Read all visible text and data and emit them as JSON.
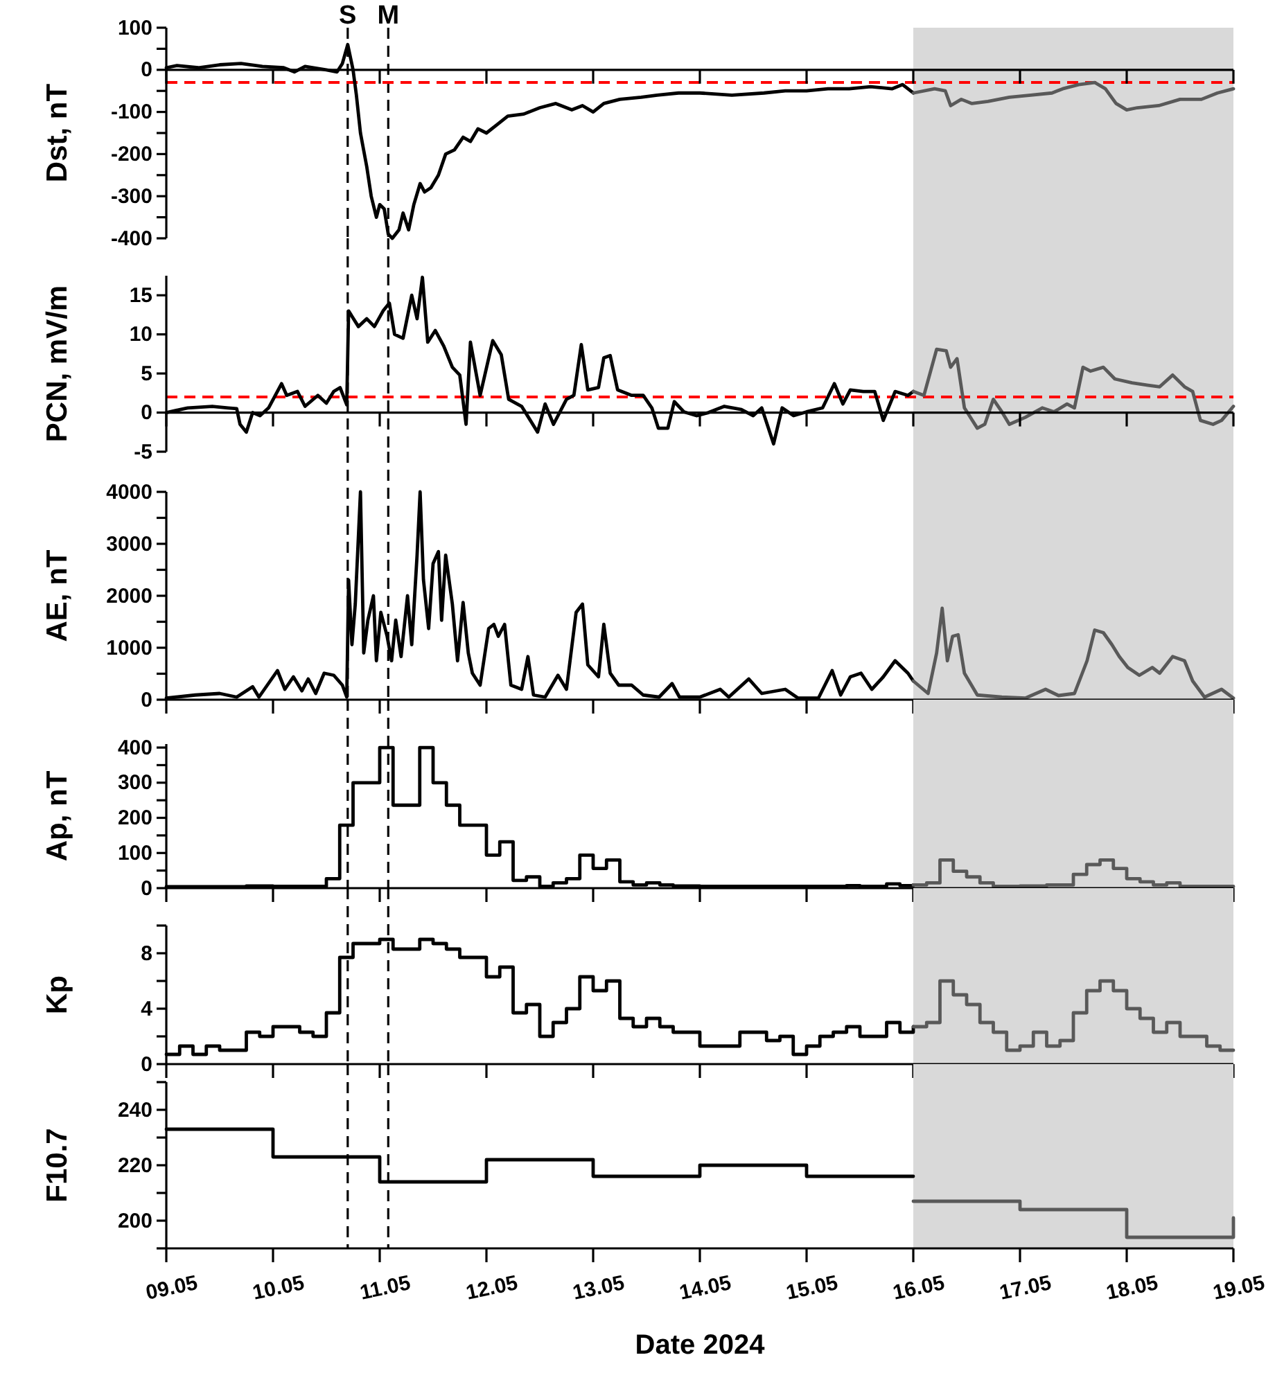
{
  "chart_data": [
    {
      "type": "line",
      "ylabel": "Dst, nT",
      "xlim": [
        "2024-05-09",
        "2024-05-19"
      ],
      "ylim": [
        -400,
        100
      ],
      "tick_labels": "y",
      "xticks": [
        {
          "value": "2024-05-09",
          "label": null
        },
        {
          "value": "2024-05-10",
          "label": null
        },
        {
          "value": "2024-05-11",
          "label": null
        },
        {
          "value": "2024-05-12",
          "label": null
        },
        {
          "value": "2024-05-13",
          "label": null
        },
        {
          "value": "2024-05-14",
          "label": null
        },
        {
          "value": "2024-05-15",
          "label": null
        },
        {
          "value": "2024-05-16",
          "label": null
        },
        {
          "value": "2024-05-17",
          "label": null
        },
        {
          "value": "2024-05-18",
          "label": null
        },
        {
          "value": "2024-05-19",
          "label": null
        }
      ],
      "yticks": [
        100,
        {
          "value": 50,
          "label": null
        },
        0,
        {
          "value": -50,
          "label": null
        },
        -100,
        {
          "value": -150,
          "label": null
        },
        -200,
        {
          "value": -250,
          "label": null
        },
        -300,
        {
          "value": -350,
          "label": null
        },
        -400
      ],
      "bands": [
        {
          "axis": "x",
          "from": "2024-05-16",
          "to": "2024-05-19",
          "color": "#d9d9d9"
        }
      ],
      "ref_lines": [
        {
          "axis": "x",
          "value": "2024-05-10T16:48",
          "label": "S",
          "color": "#000000",
          "line_style": "dashed"
        },
        {
          "axis": "x",
          "value": "2024-05-11T01:55",
          "label": "M",
          "color": "#000000",
          "line_style": "dashed"
        },
        {
          "axis": "y",
          "value": -30,
          "color": "#ff0000",
          "line_style": "dashed"
        }
      ],
      "series": [
        {
          "color": "#000000",
          "x": [
            "2024-05-09T00:00",
            "2024-05-09T02:24",
            "2024-05-09T07:12",
            "2024-05-09T12:00",
            "2024-05-09T16:48",
            "2024-05-09T21:36",
            "2024-05-10T02:24",
            "2024-05-10T04:48",
            "2024-05-10T07:12",
            "2024-05-10T12:00",
            "2024-05-10T14:24",
            "2024-05-10T15:36",
            "2024-05-10T16:48",
            "2024-05-10T18:00",
            "2024-05-10T18:45",
            "2024-05-10T19:40",
            "2024-05-10T21:05",
            "2024-05-10T22:05",
            "2024-05-10T23:15",
            "2024-05-11T00:00",
            "2024-05-11T01:00",
            "2024-05-11T01:55",
            "2024-05-11T02:50",
            "2024-05-11T04:20",
            "2024-05-11T05:15",
            "2024-05-11T06:30",
            "2024-05-11T07:40",
            "2024-05-11T09:05",
            "2024-05-11T10:05",
            "2024-05-11T11:30",
            "2024-05-11T13:12",
            "2024-05-11T14:50",
            "2024-05-11T16:48",
            "2024-05-11T18:45",
            "2024-05-11T20:24",
            "2024-05-11T22:05",
            "2024-05-12T00:00",
            "2024-05-12T02:24",
            "2024-05-12T04:48",
            "2024-05-12T08:24",
            "2024-05-12T12:00",
            "2024-05-12T15:36",
            "2024-05-12T19:12",
            "2024-05-12T21:36",
            "2024-05-13T00:00",
            "2024-05-13T02:24",
            "2024-05-13T06:00",
            "2024-05-13T10:48",
            "2024-05-13T14:24",
            "2024-05-13T19:12",
            "2024-05-14T00:00",
            "2024-05-14T07:12",
            "2024-05-14T14:24",
            "2024-05-14T19:12",
            "2024-05-15T00:00",
            "2024-05-15T04:48",
            "2024-05-15T09:36",
            "2024-05-15T14:24",
            "2024-05-15T19:12",
            "2024-05-15T21:36",
            "2024-05-16T00:00"
          ],
          "values": [
            5,
            10,
            5,
            12,
            15,
            8,
            5,
            -5,
            8,
            0,
            -5,
            15,
            60,
            0,
            -60,
            -150,
            -230,
            -300,
            -350,
            -320,
            -330,
            -390,
            -400,
            -380,
            -340,
            -380,
            -320,
            -270,
            -290,
            -280,
            -250,
            -200,
            -190,
            -160,
            -170,
            -140,
            -150,
            -130,
            -110,
            -105,
            -90,
            -80,
            -95,
            -85,
            -100,
            -80,
            -70,
            -65,
            -60,
            -55,
            -55,
            -60,
            -55,
            -50,
            -50,
            -45,
            -45,
            -40,
            -45,
            -35,
            -55
          ]
        },
        {
          "color": "#595959",
          "x": [
            "2024-05-16T00:00",
            "2024-05-16T04:48",
            "2024-05-16T07:12",
            "2024-05-16T08:24",
            "2024-05-16T10:48",
            "2024-05-16T13:12",
            "2024-05-16T16:48",
            "2024-05-16T21:36",
            "2024-05-17T02:24",
            "2024-05-17T07:12",
            "2024-05-17T09:36",
            "2024-05-17T13:12",
            "2024-05-17T16:48",
            "2024-05-17T19:12",
            "2024-05-17T21:36",
            "2024-05-18T00:00",
            "2024-05-18T02:24",
            "2024-05-18T07:12",
            "2024-05-18T12:00",
            "2024-05-18T16:48",
            "2024-05-18T20:24",
            "2024-05-19T00:00"
          ],
          "values": [
            -55,
            -45,
            -50,
            -85,
            -70,
            -80,
            -75,
            -65,
            -60,
            -55,
            -45,
            -35,
            -30,
            -45,
            -80,
            -95,
            -90,
            -85,
            -70,
            -70,
            -55,
            -45
          ]
        }
      ]
    },
    {
      "type": "line",
      "ylabel": "PCN, mV/m",
      "xlim": [
        "2024-05-09",
        "2024-05-19"
      ],
      "ylim": [
        -5,
        17.5
      ],
      "tick_labels": "y",
      "xticks": [
        {
          "value": "2024-05-09",
          "label": null
        },
        {
          "value": "2024-05-10",
          "label": null
        },
        {
          "value": "2024-05-11",
          "label": null
        },
        {
          "value": "2024-05-12",
          "label": null
        },
        {
          "value": "2024-05-13",
          "label": null
        },
        {
          "value": "2024-05-14",
          "label": null
        },
        {
          "value": "2024-05-15",
          "label": null
        },
        {
          "value": "2024-05-16",
          "label": null
        },
        {
          "value": "2024-05-17",
          "label": null
        },
        {
          "value": "2024-05-18",
          "label": null
        },
        {
          "value": "2024-05-19",
          "label": null
        }
      ],
      "yticks": [
        -5,
        0,
        5,
        10,
        15
      ],
      "bands": [
        {
          "axis": "x",
          "from": "2024-05-16",
          "to": "2024-05-19",
          "color": "#d9d9d9"
        }
      ],
      "ref_lines": [
        {
          "axis": "x",
          "value": "2024-05-10T16:48",
          "color": "#000000",
          "line_style": "dashed"
        },
        {
          "axis": "x",
          "value": "2024-05-11T01:55",
          "color": "#000000",
          "line_style": "dashed"
        },
        {
          "axis": "y",
          "value": 2,
          "color": "#ff0000",
          "line_style": "dashed"
        }
      ],
      "series": [
        {
          "color": "#000000",
          "x": [
            "2024-05-09T00:00",
            "2024-05-09T04:48",
            "2024-05-09T10:20",
            "2024-05-09T13:55",
            "2024-05-09T15:50",
            "2024-05-09T16:35",
            "2024-05-09T18:00",
            "2024-05-09T19:25",
            "2024-05-09T21:05",
            "2024-05-09T23:00",
            "2024-05-10T01:55",
            "2024-05-10T03:05",
            "2024-05-10T05:30",
            "2024-05-10T07:12",
            "2024-05-10T10:05",
            "2024-05-10T12:00",
            "2024-05-10T13:40",
            "2024-05-10T15:05",
            "2024-05-10T16:35",
            "2024-05-10T17:00",
            "2024-05-10T19:12",
            "2024-05-10T21:05",
            "2024-05-10T22:48",
            "2024-05-11T00:45",
            "2024-05-11T02:10",
            "2024-05-11T03:20",
            "2024-05-11T05:15",
            "2024-05-11T07:12",
            "2024-05-11T08:24",
            "2024-05-11T09:36",
            "2024-05-11T10:48",
            "2024-05-11T12:30",
            "2024-05-11T14:24",
            "2024-05-11T16:20",
            "2024-05-11T18:00",
            "2024-05-11T19:25",
            "2024-05-11T20:24",
            "2024-05-11T22:35",
            "2024-05-12T01:25",
            "2024-05-12T03:20",
            "2024-05-12T05:00",
            "2024-05-12T07:55",
            "2024-05-12T11:30",
            "2024-05-12T13:12",
            "2024-05-12T15:05",
            "2024-05-12T18:00",
            "2024-05-12T19:40",
            "2024-05-12T21:20",
            "2024-05-12T22:48",
            "2024-05-13T01:12",
            "2024-05-13T02:24",
            "2024-05-13T03:50",
            "2024-05-13T05:30",
            "2024-05-13T08:40",
            "2024-05-13T11:15",
            "2024-05-13T13:12",
            "2024-05-13T14:40",
            "2024-05-13T16:48",
            "2024-05-13T18:15",
            "2024-05-13T20:24",
            "2024-05-13T23:15",
            "2024-05-14T01:55",
            "2024-05-14T05:30",
            "2024-05-14T09:20",
            "2024-05-14T12:00",
            "2024-05-14T13:55",
            "2024-05-14T16:35",
            "2024-05-14T18:30",
            "2024-05-14T21:05",
            "2024-05-15T00:00",
            "2024-05-15T03:36",
            "2024-05-15T06:15",
            "2024-05-15T08:10",
            "2024-05-15T09:50",
            "2024-05-15T12:45",
            "2024-05-15T15:20",
            "2024-05-15T17:15",
            "2024-05-15T19:55",
            "2024-05-15T22:48",
            "2024-05-16T00:00"
          ],
          "values": [
            0,
            0.6,
            0.8,
            0.6,
            0.5,
            -1.5,
            -2.5,
            0,
            -0.4,
            0.6,
            3.7,
            2.2,
            2.7,
            0.8,
            2.2,
            1.2,
            2.7,
            3.2,
            1,
            13,
            11,
            12,
            11,
            13,
            14,
            10,
            9.5,
            15,
            12,
            17.3,
            9,
            10.5,
            8.5,
            5.8,
            4.8,
            -1.5,
            9,
            2.2,
            9.2,
            7.4,
            1.7,
            0.8,
            -2.5,
            1.1,
            -1.5,
            1.7,
            2.2,
            8.7,
            2.9,
            3.2,
            7,
            7.3,
            2.9,
            2.2,
            2.2,
            0.6,
            -2,
            -2,
            1.4,
            0.1,
            -0.4,
            0,
            0.8,
            0.4,
            -0.4,
            0.6,
            -4,
            0.6,
            -0.4,
            0.1,
            0.6,
            3.7,
            1.1,
            2.9,
            2.7,
            2.7,
            -1,
            2.7,
            2.2,
            2.7
          ]
        },
        {
          "color": "#595959",
          "x": [
            "2024-05-16T00:00",
            "2024-05-16T02:24",
            "2024-05-16T05:15",
            "2024-05-16T07:25",
            "2024-05-16T08:24",
            "2024-05-16T09:50",
            "2024-05-16T11:30",
            "2024-05-16T14:24",
            "2024-05-16T16:05",
            "2024-05-16T18:00",
            "2024-05-16T19:55",
            "2024-05-16T21:36",
            "2024-05-17T01:12",
            "2024-05-17T05:00",
            "2024-05-17T07:40",
            "2024-05-17T10:35",
            "2024-05-17T12:15",
            "2024-05-17T14:10",
            "2024-05-17T15:50",
            "2024-05-17T18:45",
            "2024-05-17T21:20",
            "2024-05-18T01:12",
            "2024-05-18T04:48",
            "2024-05-18T07:25",
            "2024-05-18T10:20",
            "2024-05-18T13:00",
            "2024-05-18T14:50",
            "2024-05-18T16:35",
            "2024-05-18T19:25",
            "2024-05-18T21:20",
            "2024-05-19T00:00"
          ],
          "values": [
            2.7,
            2.2,
            8.1,
            7.9,
            5.8,
            6.9,
            0.6,
            -2,
            -1.5,
            1.7,
            0.1,
            -1.5,
            -0.6,
            0.6,
            0.1,
            1.1,
            0.6,
            5.8,
            5.3,
            5.8,
            4.3,
            3.8,
            3.5,
            3.3,
            4.8,
            3.3,
            2.7,
            -1,
            -1.5,
            -1,
            0.8
          ]
        }
      ]
    },
    {
      "type": "line",
      "ylabel": "AE, nT",
      "xlim": [
        "2024-05-09",
        "2024-05-19"
      ],
      "ylim": [
        0,
        4000
      ],
      "tick_labels": "y",
      "xticks": [
        {
          "value": "2024-05-09",
          "label": null
        },
        {
          "value": "2024-05-10",
          "label": null
        },
        {
          "value": "2024-05-11",
          "label": null
        },
        {
          "value": "2024-05-12",
          "label": null
        },
        {
          "value": "2024-05-13",
          "label": null
        },
        {
          "value": "2024-05-14",
          "label": null
        },
        {
          "value": "2024-05-15",
          "label": null
        },
        {
          "value": "2024-05-16",
          "label": null
        },
        {
          "value": "2024-05-17",
          "label": null
        },
        {
          "value": "2024-05-18",
          "label": null
        },
        {
          "value": "2024-05-19",
          "label": null
        }
      ],
      "yticks": [
        0,
        {
          "value": 500,
          "label": null
        },
        1000,
        {
          "value": 1500,
          "label": null
        },
        2000,
        {
          "value": 2500,
          "label": null
        },
        3000,
        {
          "value": 3500,
          "label": null
        },
        4000
      ],
      "bands": [
        {
          "axis": "x",
          "from": "2024-05-16",
          "to": "2024-05-19",
          "color": "#d9d9d9"
        }
      ],
      "ref_lines": [
        {
          "axis": "x",
          "value": "2024-05-10T16:48",
          "color": "#000000",
          "line_style": "dashed"
        },
        {
          "axis": "x",
          "value": "2024-05-11T01:55",
          "color": "#000000",
          "line_style": "dashed"
        }
      ],
      "series": [
        {
          "color": "#000000",
          "x": [
            "2024-05-09T00:00",
            "2024-05-09T06:30",
            "2024-05-09T12:00",
            "2024-05-09T15:50",
            "2024-05-09T19:25",
            "2024-05-09T20:50",
            "2024-05-10T01:00",
            "2024-05-10T02:40",
            "2024-05-10T04:35",
            "2024-05-10T06:30",
            "2024-05-10T07:55",
            "2024-05-10T09:36",
            "2024-05-10T11:30",
            "2024-05-10T13:40",
            "2024-05-10T15:36",
            "2024-05-10T16:35",
            "2024-05-10T17:00",
            "2024-05-10T17:45",
            "2024-05-10T18:30",
            "2024-05-10T19:40",
            "2024-05-10T20:24",
            "2024-05-10T21:20",
            "2024-05-10T22:35",
            "2024-05-10T23:15",
            "2024-05-11T00:15",
            "2024-05-11T01:40",
            "2024-05-11T02:40",
            "2024-05-11T03:36",
            "2024-05-11T04:48",
            "2024-05-11T06:15",
            "2024-05-11T07:12",
            "2024-05-11T08:24",
            "2024-05-11T09:05",
            "2024-05-11T09:50",
            "2024-05-11T11:00",
            "2024-05-11T12:00",
            "2024-05-11T13:12",
            "2024-05-11T13:55",
            "2024-05-11T14:50",
            "2024-05-11T16:20",
            "2024-05-11T17:30",
            "2024-05-11T18:45",
            "2024-05-11T19:55",
            "2024-05-11T20:50",
            "2024-05-11T22:35",
            "2024-05-12T00:30",
            "2024-05-12T01:40",
            "2024-05-12T02:40",
            "2024-05-12T04:05",
            "2024-05-12T05:30",
            "2024-05-12T07:55",
            "2024-05-12T09:20",
            "2024-05-12T10:35",
            "2024-05-12T13:12",
            "2024-05-12T16:05",
            "2024-05-12T18:00",
            "2024-05-12T20:10",
            "2024-05-12T21:36",
            "2024-05-12T22:48",
            "2024-05-13T01:12",
            "2024-05-13T02:24",
            "2024-05-13T03:50",
            "2024-05-13T05:45",
            "2024-05-13T08:40",
            "2024-05-13T11:15",
            "2024-05-13T14:50",
            "2024-05-13T17:45",
            "2024-05-13T19:25",
            "2024-05-14T00:00",
            "2024-05-14T04:35",
            "2024-05-14T06:30",
            "2024-05-14T11:00",
            "2024-05-14T13:55",
            "2024-05-14T19:12",
            "2024-05-14T22:05",
            "2024-05-15T02:40",
            "2024-05-15T05:45",
            "2024-05-15T07:40",
            "2024-05-15T09:50",
            "2024-05-15T12:15",
            "2024-05-15T14:40",
            "2024-05-15T17:15",
            "2024-05-15T19:55",
            "2024-05-15T22:48",
            "2024-05-16T00:00"
          ],
          "values": [
            30,
            90,
            120,
            50,
            250,
            50,
            560,
            200,
            440,
            170,
            400,
            120,
            510,
            470,
            280,
            50,
            2300,
            1060,
            1840,
            4000,
            900,
            1530,
            2000,
            750,
            1680,
            1220,
            750,
            1530,
            830,
            2000,
            1060,
            2780,
            4000,
            2310,
            1370,
            2620,
            2850,
            1530,
            2780,
            1840,
            750,
            1870,
            900,
            510,
            280,
            1370,
            1450,
            1220,
            1450,
            280,
            200,
            830,
            90,
            50,
            470,
            200,
            1680,
            1840,
            670,
            440,
            1450,
            510,
            280,
            280,
            90,
            50,
            310,
            50,
            50,
            200,
            50,
            400,
            120,
            200,
            30,
            30,
            560,
            90,
            440,
            510,
            200,
            440,
            750,
            510,
            360
          ]
        },
        {
          "color": "#595959",
          "x": [
            "2024-05-16T00:00",
            "2024-05-16T03:20",
            "2024-05-16T05:15",
            "2024-05-16T06:30",
            "2024-05-16T07:40",
            "2024-05-16T08:50",
            "2024-05-16T10:05",
            "2024-05-16T11:30",
            "2024-05-16T14:24",
            "2024-05-16T19:55",
            "2024-05-17T01:12",
            "2024-05-17T05:45",
            "2024-05-17T08:40",
            "2024-05-17T12:15",
            "2024-05-17T15:05",
            "2024-05-17T16:48",
            "2024-05-17T18:45",
            "2024-05-17T20:40",
            "2024-05-17T22:20",
            "2024-05-18T00:15",
            "2024-05-18T02:50",
            "2024-05-18T05:45",
            "2024-05-18T07:25",
            "2024-05-18T10:20",
            "2024-05-18T13:00",
            "2024-05-18T14:50",
            "2024-05-18T17:30",
            "2024-05-18T21:20",
            "2024-05-19T00:00"
          ],
          "values": [
            360,
            120,
            900,
            1760,
            750,
            1220,
            1250,
            510,
            90,
            50,
            30,
            200,
            80,
            120,
            750,
            1340,
            1290,
            1060,
            830,
            620,
            470,
            620,
            510,
            830,
            750,
            360,
            50,
            200,
            30
          ]
        }
      ]
    },
    {
      "type": "step",
      "ylabel": "Ap, nT",
      "xlim": [
        "2024-05-09",
        "2024-05-19"
      ],
      "ylim": [
        0,
        410
      ],
      "tick_labels": "y",
      "xticks": [
        {
          "value": "2024-05-09",
          "label": null
        },
        {
          "value": "2024-05-10",
          "label": null
        },
        {
          "value": "2024-05-11",
          "label": null
        },
        {
          "value": "2024-05-12",
          "label": null
        },
        {
          "value": "2024-05-13",
          "label": null
        },
        {
          "value": "2024-05-14",
          "label": null
        },
        {
          "value": "2024-05-15",
          "label": null
        },
        {
          "value": "2024-05-16",
          "label": null
        },
        {
          "value": "2024-05-17",
          "label": null
        },
        {
          "value": "2024-05-18",
          "label": null
        },
        {
          "value": "2024-05-19",
          "label": null
        }
      ],
      "yticks": [
        0,
        {
          "value": 50,
          "label": null
        },
        100,
        {
          "value": 150,
          "label": null
        },
        200,
        {
          "value": 250,
          "label": null
        },
        300,
        {
          "value": 350,
          "label": null
        },
        400
      ],
      "bands": [
        {
          "axis": "x",
          "from": "2024-05-16",
          "to": "2024-05-19",
          "color": "#d9d9d9"
        }
      ],
      "ref_lines": [
        {
          "axis": "x",
          "value": "2024-05-10T16:48",
          "color": "#000000",
          "line_style": "dashed"
        },
        {
          "axis": "x",
          "value": "2024-05-11T01:55",
          "color": "#000000",
          "line_style": "dashed"
        }
      ],
      "series": [
        {
          "color": "#000000",
          "x": [
            "2024-05-09T00:00",
            "2024-05-09T18:00",
            "2024-05-10T00:00",
            "2024-05-10T09:00",
            "2024-05-10T12:00",
            "2024-05-10T15:00",
            "2024-05-10T18:00",
            "2024-05-11T00:00",
            "2024-05-11T03:00",
            "2024-05-11T09:00",
            "2024-05-11T12:00",
            "2024-05-11T15:00",
            "2024-05-11T18:00",
            "2024-05-12T00:00",
            "2024-05-12T03:00",
            "2024-05-12T06:00",
            "2024-05-12T09:00",
            "2024-05-12T12:00",
            "2024-05-12T15:00",
            "2024-05-12T18:00",
            "2024-05-12T21:00",
            "2024-05-13T00:00",
            "2024-05-13T03:00",
            "2024-05-13T06:00",
            "2024-05-13T09:00",
            "2024-05-13T12:00",
            "2024-05-13T15:00",
            "2024-05-13T18:00",
            "2024-05-14T00:00",
            "2024-05-15T09:00",
            "2024-05-15T12:00",
            "2024-05-15T18:00",
            "2024-05-15T21:00",
            "2024-05-16T00:00"
          ],
          "values": [
            4,
            6,
            5,
            5,
            27,
            179,
            300,
            400,
            236,
            400,
            300,
            236,
            179,
            94,
            132,
            22,
            32,
            5,
            15,
            27,
            94,
            56,
            80,
            18,
            9,
            15,
            9,
            6,
            5,
            7,
            5,
            12,
            7,
            9
          ]
        },
        {
          "color": "#595959",
          "x": [
            "2024-05-16T00:00",
            "2024-05-16T03:00",
            "2024-05-16T06:00",
            "2024-05-16T09:00",
            "2024-05-16T12:00",
            "2024-05-16T15:00",
            "2024-05-16T18:00",
            "2024-05-17T00:00",
            "2024-05-17T06:00",
            "2024-05-17T12:00",
            "2024-05-17T15:00",
            "2024-05-17T18:00",
            "2024-05-17T21:00",
            "2024-05-18T00:00",
            "2024-05-18T03:00",
            "2024-05-18T06:00",
            "2024-05-18T09:00",
            "2024-05-18T12:00",
            "2024-05-19T00:00"
          ],
          "values": [
            9,
            15,
            80,
            48,
            32,
            15,
            5,
            6,
            9,
            39,
            67,
            80,
            56,
            27,
            18,
            9,
            15,
            5,
            4
          ]
        }
      ]
    },
    {
      "type": "step",
      "ylabel": "Kp",
      "xlim": [
        "2024-05-09",
        "2024-05-19"
      ],
      "ylim": [
        0,
        10
      ],
      "tick_labels": "y",
      "xticks": [
        {
          "value": "2024-05-09",
          "label": null
        },
        {
          "value": "2024-05-10",
          "label": null
        },
        {
          "value": "2024-05-11",
          "label": null
        },
        {
          "value": "2024-05-12",
          "label": null
        },
        {
          "value": "2024-05-13",
          "label": null
        },
        {
          "value": "2024-05-14",
          "label": null
        },
        {
          "value": "2024-05-15",
          "label": null
        },
        {
          "value": "2024-05-16",
          "label": null
        },
        {
          "value": "2024-05-17",
          "label": null
        },
        {
          "value": "2024-05-18",
          "label": null
        },
        {
          "value": "2024-05-19",
          "label": null
        }
      ],
      "yticks": [
        0,
        {
          "value": 2,
          "label": null
        },
        4,
        {
          "value": 6,
          "label": null
        },
        8,
        {
          "value": 10,
          "label": null
        }
      ],
      "bands": [
        {
          "axis": "x",
          "from": "2024-05-16",
          "to": "2024-05-19",
          "color": "#d9d9d9"
        }
      ],
      "ref_lines": [
        {
          "axis": "x",
          "value": "2024-05-10T16:48",
          "color": "#000000",
          "line_style": "dashed"
        },
        {
          "axis": "x",
          "value": "2024-05-11T01:55",
          "color": "#000000",
          "line_style": "dashed"
        }
      ],
      "series": [
        {
          "color": "#000000",
          "x": [
            "2024-05-09T00:00",
            "2024-05-09T03:00",
            "2024-05-09T06:00",
            "2024-05-09T09:00",
            "2024-05-09T12:00",
            "2024-05-09T18:00",
            "2024-05-09T21:00",
            "2024-05-10T00:00",
            "2024-05-10T06:00",
            "2024-05-10T09:00",
            "2024-05-10T12:00",
            "2024-05-10T15:00",
            "2024-05-10T18:00",
            "2024-05-11T00:00",
            "2024-05-11T03:00",
            "2024-05-11T09:00",
            "2024-05-11T12:00",
            "2024-05-11T15:00",
            "2024-05-11T18:00",
            "2024-05-12T00:00",
            "2024-05-12T03:00",
            "2024-05-12T06:00",
            "2024-05-12T09:00",
            "2024-05-12T12:00",
            "2024-05-12T15:00",
            "2024-05-12T18:00",
            "2024-05-12T21:00",
            "2024-05-13T00:00",
            "2024-05-13T03:00",
            "2024-05-13T06:00",
            "2024-05-13T09:00",
            "2024-05-13T12:00",
            "2024-05-13T15:00",
            "2024-05-13T18:00",
            "2024-05-14T00:00",
            "2024-05-14T09:00",
            "2024-05-14T15:00",
            "2024-05-14T18:00",
            "2024-05-14T21:00",
            "2024-05-15T00:00",
            "2024-05-15T03:00",
            "2024-05-15T06:00",
            "2024-05-15T09:00",
            "2024-05-15T12:00",
            "2024-05-15T18:00",
            "2024-05-15T21:00",
            "2024-05-16T00:00"
          ],
          "values": [
            0.7,
            1.3,
            0.7,
            1.3,
            1,
            2.3,
            2,
            2.7,
            2.3,
            2,
            3.7,
            7.7,
            8.7,
            9,
            8.3,
            9,
            8.7,
            8.3,
            7.7,
            6.3,
            7,
            3.7,
            4.3,
            2,
            3,
            4,
            6.3,
            5.3,
            6,
            3.3,
            2.7,
            3.3,
            2.7,
            2.3,
            1.3,
            2.3,
            1.7,
            2,
            0.7,
            1.3,
            2,
            2.3,
            2.7,
            2,
            3,
            2.3,
            2.7
          ]
        },
        {
          "color": "#595959",
          "x": [
            "2024-05-16T00:00",
            "2024-05-16T03:00",
            "2024-05-16T06:00",
            "2024-05-16T09:00",
            "2024-05-16T12:00",
            "2024-05-16T15:00",
            "2024-05-16T18:00",
            "2024-05-16T21:00",
            "2024-05-17T00:00",
            "2024-05-17T03:00",
            "2024-05-17T06:00",
            "2024-05-17T09:00",
            "2024-05-17T12:00",
            "2024-05-17T15:00",
            "2024-05-17T18:00",
            "2024-05-17T21:00",
            "2024-05-18T00:00",
            "2024-05-18T03:00",
            "2024-05-18T06:00",
            "2024-05-18T09:00",
            "2024-05-18T12:00",
            "2024-05-18T18:00",
            "2024-05-18T21:00",
            "2024-05-19T00:00"
          ],
          "values": [
            2.7,
            3,
            6,
            5,
            4.3,
            3,
            2.3,
            1,
            1.3,
            2.3,
            1.3,
            1.7,
            3.7,
            5.3,
            6,
            5.3,
            4,
            3.3,
            2.3,
            3,
            2,
            1.3,
            1,
            1
          ]
        }
      ]
    },
    {
      "type": "step",
      "ylabel": "F10.7",
      "xlabel": "Date 2024",
      "xlim": [
        "2024-05-09",
        "2024-05-19"
      ],
      "ylim": [
        190,
        250
      ],
      "xticks": [
        {
          "value": "2024-05-09",
          "label": "09.05"
        },
        {
          "value": "2024-05-10",
          "label": "10.05"
        },
        {
          "value": "2024-05-11",
          "label": "11.05"
        },
        {
          "value": "2024-05-12",
          "label": "12.05"
        },
        {
          "value": "2024-05-13",
          "label": "13.05"
        },
        {
          "value": "2024-05-14",
          "label": "14.05"
        },
        {
          "value": "2024-05-15",
          "label": "15.05"
        },
        {
          "value": "2024-05-16",
          "label": "16.05"
        },
        {
          "value": "2024-05-17",
          "label": "17.05"
        },
        {
          "value": "2024-05-18",
          "label": "18.05"
        },
        {
          "value": "2024-05-19",
          "label": "19.05"
        }
      ],
      "yticks": [
        {
          "value": 190,
          "label": null
        },
        200,
        {
          "value": 210,
          "label": null
        },
        220,
        {
          "value": 230,
          "label": null
        },
        240,
        {
          "value": 250,
          "label": null
        }
      ],
      "bands": [
        {
          "axis": "x",
          "from": "2024-05-16",
          "to": "2024-05-19",
          "color": "#d9d9d9"
        }
      ],
      "ref_lines": [
        {
          "axis": "x",
          "value": "2024-05-10T16:48",
          "color": "#000000",
          "line_style": "dashed"
        },
        {
          "axis": "x",
          "value": "2024-05-11T01:55",
          "color": "#000000",
          "line_style": "dashed"
        }
      ],
      "series": [
        {
          "color": "#000000",
          "x": [
            "2024-05-09T00:00",
            "2024-05-10T00:00",
            "2024-05-11T00:00",
            "2024-05-12T00:00",
            "2024-05-13T00:00",
            "2024-05-14T00:00",
            "2024-05-15T00:00",
            "2024-05-16T00:00"
          ],
          "values": [
            233,
            223,
            214,
            222,
            216,
            220,
            216,
            216
          ]
        },
        {
          "color": "#595959",
          "x": [
            "2024-05-16T00:00",
            "2024-05-17T00:00",
            "2024-05-18T00:00",
            "2024-05-18T23:15",
            "2024-05-19T00:00"
          ],
          "values": [
            207,
            204,
            194,
            194,
            201
          ]
        }
      ]
    }
  ]
}
